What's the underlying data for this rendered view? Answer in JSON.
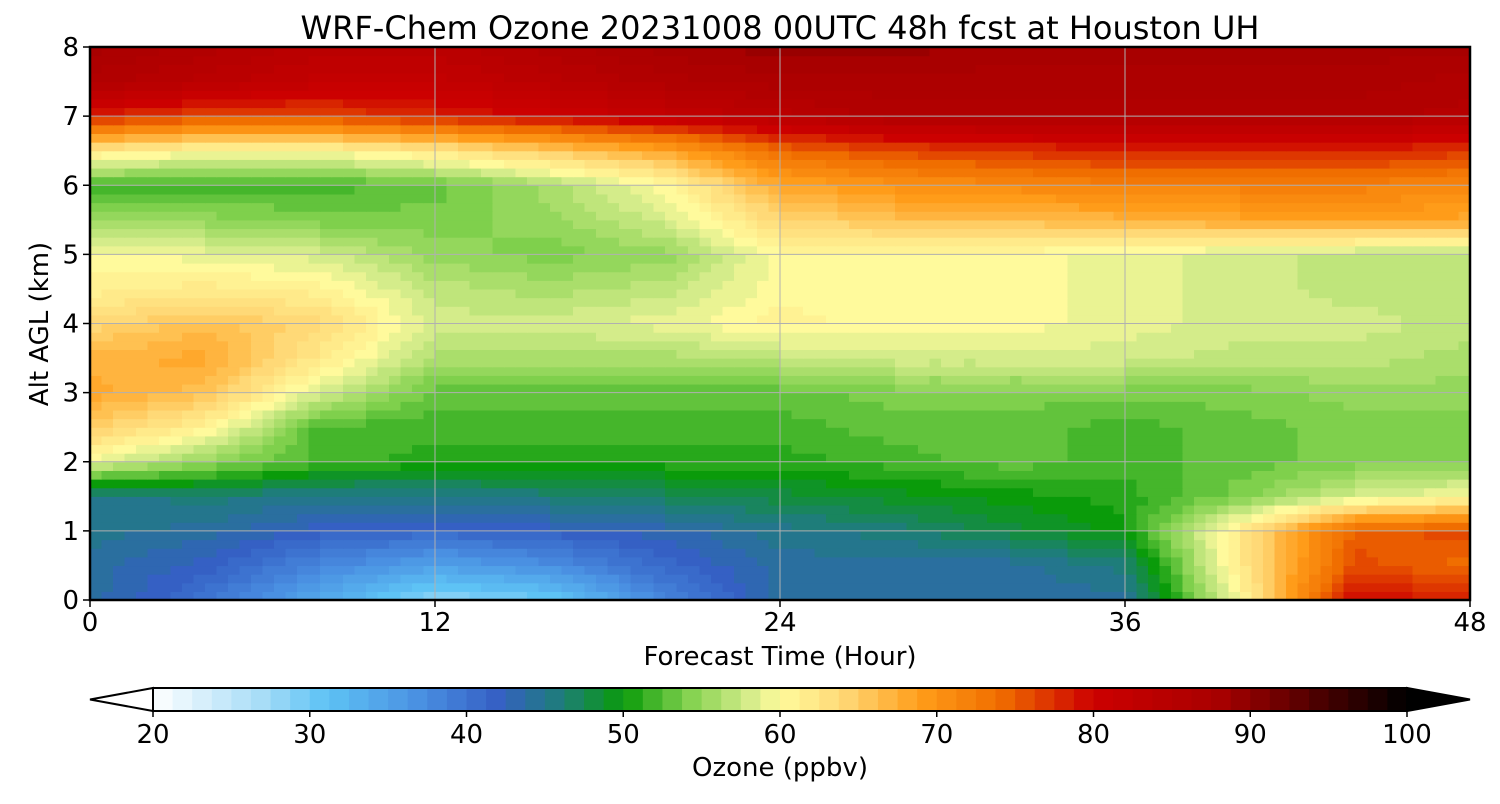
{
  "chart_data": {
    "type": "heatmap",
    "title": "WRF-Chem Ozone  20231008 00UTC 48h fcst at Houston UH",
    "xlabel": "Forecast Time (Hour)",
    "ylabel": "Alt AGL (km)",
    "xlim": [
      0,
      48
    ],
    "ylim": [
      0,
      8
    ],
    "x_ticks": [
      0,
      12,
      24,
      36,
      48
    ],
    "y_ticks": [
      0,
      1,
      2,
      3,
      4,
      5,
      6,
      7,
      8
    ],
    "grid": true,
    "colorbar": {
      "label": "Ozone  (ppbv)",
      "min": 20,
      "max": 100,
      "ticks": [
        20,
        30,
        40,
        50,
        60,
        70,
        80,
        90,
        100
      ],
      "extend": "both",
      "stops": [
        {
          "v": 20,
          "c": "#ffffff"
        },
        {
          "v": 27,
          "c": "#a6dcf7"
        },
        {
          "v": 31,
          "c": "#5ec3f5"
        },
        {
          "v": 37,
          "c": "#4a90e2"
        },
        {
          "v": 42,
          "c": "#3560c4"
        },
        {
          "v": 46,
          "c": "#1e7d7a"
        },
        {
          "v": 50,
          "c": "#0a9b0a"
        },
        {
          "v": 54,
          "c": "#7fd04c"
        },
        {
          "v": 58,
          "c": "#d4ec8a"
        },
        {
          "v": 60,
          "c": "#fffa9c"
        },
        {
          "v": 64,
          "c": "#ffd977"
        },
        {
          "v": 69,
          "c": "#ff9c19"
        },
        {
          "v": 74,
          "c": "#f06e00"
        },
        {
          "v": 80,
          "c": "#cc0000"
        },
        {
          "v": 88,
          "c": "#a80000"
        },
        {
          "v": 94,
          "c": "#500000"
        },
        {
          "v": 100,
          "c": "#000000"
        }
      ]
    },
    "x": [
      0,
      4,
      8,
      12,
      16,
      20,
      24,
      28,
      32,
      36,
      40,
      44,
      48
    ],
    "y": [
      0,
      0.5,
      1,
      1.5,
      2,
      2.5,
      3,
      3.5,
      4,
      4.5,
      5,
      5.5,
      6,
      6.5,
      7,
      7.5,
      8
    ],
    "z": [
      [
        44,
        40,
        34,
        28,
        30,
        38,
        44,
        44,
        44,
        44,
        60,
        80,
        78
      ],
      [
        44,
        42,
        38,
        35,
        37,
        41,
        44,
        44,
        44,
        46,
        62,
        76,
        74
      ],
      [
        45,
        44,
        42,
        41,
        42,
        43,
        45,
        46,
        48,
        50,
        62,
        75,
        76
      ],
      [
        45,
        46,
        45,
        45,
        46,
        47,
        48,
        49,
        50,
        51,
        54,
        58,
        60
      ],
      [
        59,
        55,
        52,
        51,
        51,
        51,
        51,
        52,
        53,
        52,
        53,
        54,
        54
      ],
      [
        65,
        61,
        52,
        52,
        52,
        52,
        52,
        53,
        53,
        52,
        53,
        54,
        54
      ],
      [
        68,
        66,
        58,
        53,
        53,
        53,
        53,
        54,
        54,
        54,
        54,
        55,
        55
      ],
      [
        67,
        68,
        62,
        56,
        56,
        56,
        57,
        58,
        58,
        58,
        57,
        57,
        56
      ],
      [
        64,
        66,
        64,
        58,
        58,
        59,
        61,
        60,
        60,
        59,
        58,
        58,
        57
      ],
      [
        61,
        62,
        61,
        57,
        56,
        57,
        60,
        60,
        60,
        59,
        58,
        57,
        57
      ],
      [
        60,
        59,
        58,
        55,
        54,
        55,
        60,
        60,
        60,
        59,
        58,
        57,
        57
      ],
      [
        56,
        55,
        54,
        54,
        55,
        58,
        64,
        66,
        66,
        67,
        68,
        69,
        68
      ],
      [
        52,
        52,
        52,
        53,
        56,
        60,
        68,
        70,
        71,
        72,
        72,
        72,
        71
      ],
      [
        62,
        60,
        60,
        62,
        65,
        68,
        74,
        76,
        77,
        78,
        78,
        78,
        77
      ],
      [
        78,
        76,
        76,
        78,
        80,
        82,
        84,
        86,
        86,
        86,
        86,
        86,
        85
      ],
      [
        86,
        84,
        82,
        82,
        84,
        86,
        87,
        87,
        87,
        87,
        87,
        87,
        86
      ],
      [
        88,
        86,
        84,
        84,
        86,
        88,
        89,
        89,
        88,
        88,
        88,
        88,
        88
      ]
    ]
  }
}
